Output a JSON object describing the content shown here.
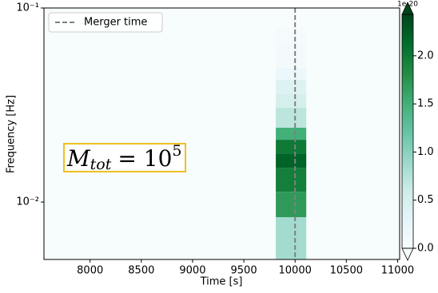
{
  "chart_data": {
    "type": "heatmap",
    "xlabel": "Time [s]",
    "ylabel": "Frequency [Hz]",
    "xlim": [
      7550,
      11020
    ],
    "ylim": [
      0.00506,
      0.1
    ],
    "yscale": "log",
    "xticks": [
      8000,
      8500,
      9000,
      9500,
      10000,
      10500,
      11000
    ],
    "yticks": [
      {
        "value": 0.01,
        "label": "10⁻²"
      },
      {
        "value": 0.1,
        "label": "10⁻¹"
      }
    ],
    "x_bins": [
      9812,
      10109
    ],
    "y_bins": [
      0.00506,
      0.00836,
      0.0113,
      0.01503,
      0.01767,
      0.02094,
      0.02415,
      0.0306,
      0.036,
      0.0427,
      0.0491,
      0.0653,
      0.0789
    ],
    "values": [
      0.85,
      1.7,
      1.95,
      2.2,
      2.0,
      1.5,
      0.7,
      0.5,
      0.4,
      0.2,
      0.08,
      0.03
    ],
    "background_value": 0,
    "cmap": [
      "#f7fcfd",
      "#e5f5f9",
      "#ccece6",
      "#99d8c9",
      "#66c2a4",
      "#41ae76",
      "#238b45",
      "#006d2c",
      "#00441b"
    ],
    "colorbar": {
      "offset_label": "1e-20",
      "lim": [
        0,
        2.43
      ],
      "ticks": [
        {
          "value": 0,
          "label": "0.0"
        },
        {
          "value": 0.5,
          "label": "0.5"
        },
        {
          "value": 1,
          "label": "1.0"
        },
        {
          "value": 1.5,
          "label": "1.5"
        },
        {
          "value": 2,
          "label": "2.0"
        }
      ]
    },
    "vlines": [
      {
        "name": "Merger time",
        "x": 10000,
        "color": "#808080"
      }
    ],
    "legend": "upper left",
    "annotation": {
      "base": "M",
      "sub": "tot",
      "rest": "= 10",
      "sup": "5",
      "border": "#f0c020"
    }
  }
}
